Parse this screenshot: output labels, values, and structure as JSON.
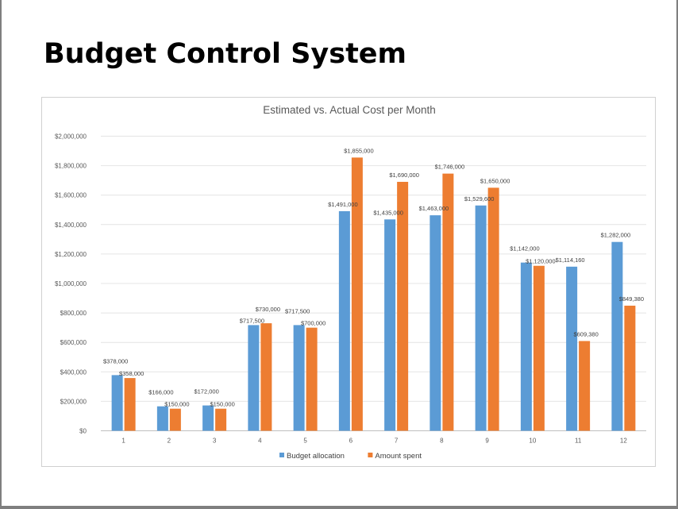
{
  "page": {
    "title": "Budget Control System"
  },
  "chart_data": {
    "type": "bar",
    "title": "Estimated vs. Actual Cost per Month",
    "xlabel": "",
    "ylabel": "",
    "categories": [
      "1",
      "2",
      "3",
      "4",
      "5",
      "6",
      "7",
      "8",
      "9",
      "10",
      "11",
      "12"
    ],
    "series": [
      {
        "name": "Budget allocation",
        "color": "#5b9bd5",
        "values": [
          378000,
          166000,
          172000,
          717500,
          717500,
          1491000,
          1435000,
          1463000,
          1529600,
          1142000,
          1114160,
          1282000
        ],
        "labels": [
          "$378,000",
          "$166,000",
          "$172,000",
          "$717,500",
          "$717,500",
          "$1,491,000",
          "$1,435,000",
          "$1,463,000",
          "$1,529,600",
          "$1,142,000",
          "$1,114,160",
          "$1,282,000"
        ]
      },
      {
        "name": "Amount spent",
        "color": "#ed7d31",
        "values": [
          358000,
          150000,
          150000,
          730000,
          700000,
          1855000,
          1690000,
          1746000,
          1650000,
          1120000,
          609380,
          849380
        ],
        "labels": [
          "$358,000",
          "$150,000",
          "$150,000",
          "$730,000",
          "$700,000",
          "$1,855,000",
          "$1,690,000",
          "$1,746,000",
          "$1,650,000",
          "$1,120,000",
          "$609,380",
          "$849,380"
        ]
      }
    ],
    "ylim": [
      0,
      2000000
    ],
    "yticks": [
      0,
      200000,
      400000,
      600000,
      800000,
      1000000,
      1200000,
      1400000,
      1600000,
      1800000,
      2000000
    ],
    "ytick_labels": [
      "$0",
      "$200,000",
      "$400,000",
      "$600,000",
      "$800,000",
      "$1,000,000",
      "$1,200,000",
      "$1,400,000",
      "$1,600,000",
      "$1,800,000",
      "$2,000,000"
    ],
    "grid": true,
    "legend": "bottom"
  }
}
